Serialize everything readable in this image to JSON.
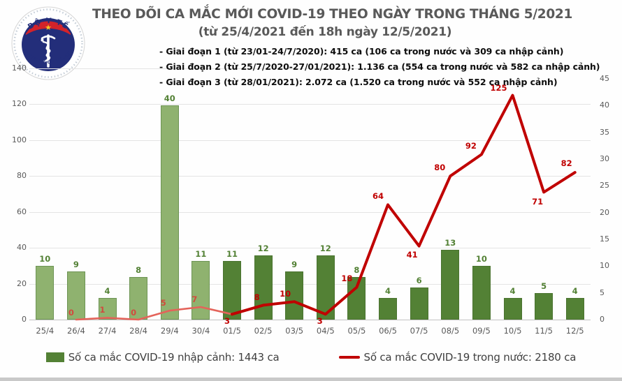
{
  "header": {
    "title": "THEO DÕI CA MẮC MỚI COVID-19 THEO NGÀY TRONG THÁNG 5/2021",
    "subtitle": "(từ 25/4/2021 đến 18h ngày 12/5/2021)"
  },
  "logo": {
    "top_text": "BỘ Y TẾ",
    "bottom_text": "MINISTRY OF HEALTH",
    "star": "★"
  },
  "notes": [
    "- Giai đoạn 1 (từ 23/01-24/7/2020): 415 ca (106 ca trong nước và 309 ca nhập cảnh)",
    "- Giai đoạn 2 (từ 25/7/2020-27/01/2021): 1.136 ca (554 ca trong nước và 582 ca nhập cảnh)",
    "- Giai đoạn 3 (từ 28/01/2021): 2.072 ca (1.520 ca trong nước và 552 ca nhập cảnh)"
  ],
  "chart_data": {
    "type": "bar+line",
    "categories": [
      "25/4",
      "26/4",
      "27/4",
      "28/4",
      "29/4",
      "30/4",
      "01/5",
      "02/5",
      "03/5",
      "04/5",
      "05/5",
      "06/5",
      "07/5",
      "08/5",
      "09/5",
      "10/5",
      "11/5",
      "12/5"
    ],
    "series": [
      {
        "name": "Số ca mắc COVID-19 nhập cảnh",
        "type": "bar",
        "axis": "right",
        "values": [
          10,
          9,
          4,
          8,
          40,
          11,
          11,
          12,
          9,
          12,
          8,
          4,
          6,
          13,
          10,
          4,
          5,
          4
        ]
      },
      {
        "name": "Số ca mắc COVID-19 trong nước",
        "type": "line",
        "axis": "left",
        "values": [
          null,
          0,
          1,
          0,
          5,
          7,
          3,
          8,
          10,
          3,
          18,
          64,
          41,
          80,
          92,
          125,
          71,
          82
        ]
      }
    ],
    "left_axis": {
      "ticks": [
        0,
        20,
        40,
        60,
        80,
        100,
        120,
        140
      ],
      "max": 140
    },
    "right_axis": {
      "ticks": [
        0,
        5,
        10,
        15,
        20,
        25,
        30,
        35,
        40,
        45
      ],
      "max": 45
    },
    "style_split_index": 6,
    "grid": true,
    "legend_position": "bottom",
    "colors": {
      "bar_april": "#8fb26f",
      "bar_april_border": "#6d9454",
      "bar_may": "#538135",
      "bar_may_border": "#4a7330",
      "line_april": "#e4635a",
      "line_may": "#c00000",
      "bar_label": "#538135",
      "label_april": "#d24a3e",
      "label_may": "#c00000",
      "gridline": "#e4e4e4",
      "axis_line": "#c2c2c2",
      "axis_text": "#595959",
      "title": "#595959"
    }
  },
  "legend": {
    "bar_label": "Số ca mắc COVID-19 nhập cảnh: 1443 ca",
    "line_label": "Số ca mắc COVID-19 trong nước: 2180 ca"
  }
}
